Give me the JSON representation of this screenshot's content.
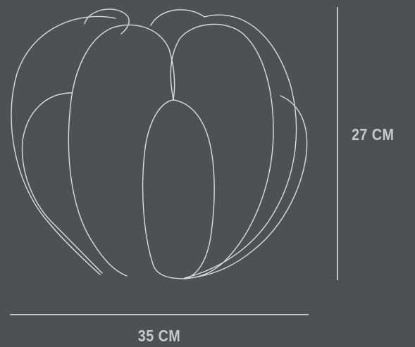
{
  "dimensions": {
    "height_label": "27 CM",
    "width_label": "35 CM"
  },
  "colors": {
    "background": "#4e5051",
    "line": "#dcdcdc",
    "text": "#c8c8c8"
  }
}
